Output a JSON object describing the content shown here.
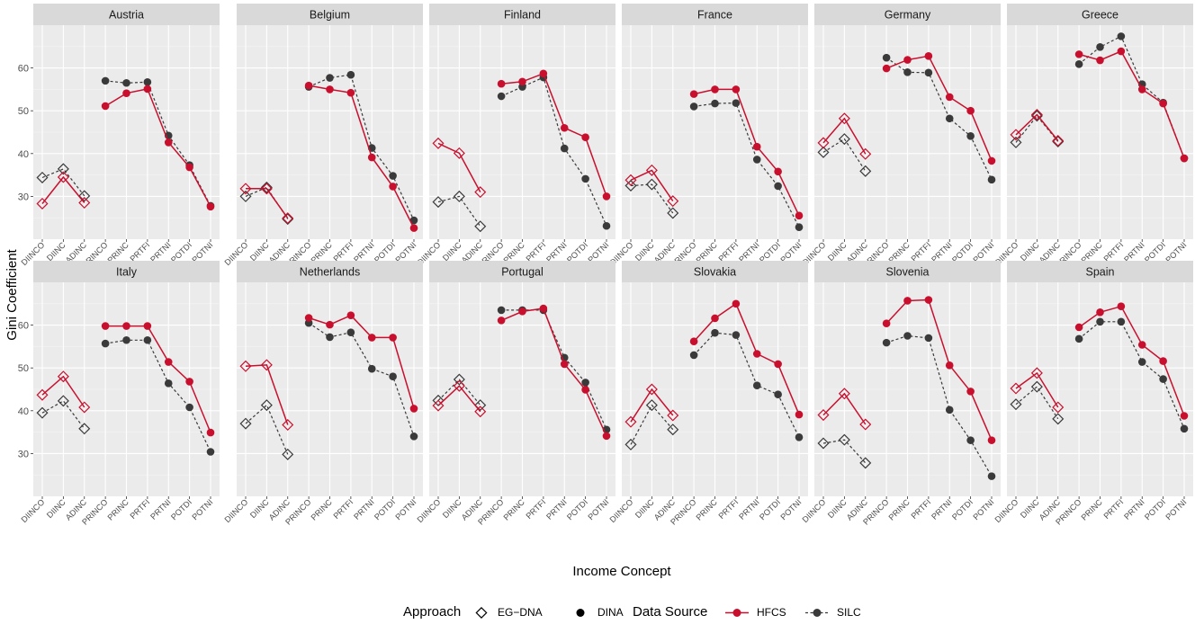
{
  "chart_data": {
    "type": "line",
    "xlabel": "Income Concept",
    "ylabel": "Gini Coefficient",
    "ylim": [
      20,
      70
    ],
    "yticks": [
      30,
      40,
      50,
      60
    ],
    "grid": true,
    "x": [
      "DIINCO",
      "DIINC",
      "ADINC",
      "PRINCO",
      "PRINC",
      "PRTFI",
      "PRTNI",
      "POTDI",
      "POTNI"
    ],
    "approach_groups": {
      "EG-DNA": [
        "DIINCO",
        "DIINC",
        "ADINC"
      ],
      "DINA": [
        "PRINCO",
        "PRINC",
        "PRTFI",
        "PRTNI",
        "POTDI",
        "POTNI"
      ]
    },
    "legend": {
      "approach_title": "Approach",
      "approach_items": [
        "EG−DNA",
        "DINA"
      ],
      "source_title": "Data Source",
      "source_items": [
        "HFCS",
        "SILC"
      ],
      "placement": "bottom"
    },
    "colors": {
      "HFCS": "#c8102e",
      "SILC": "#3a3a3a",
      "panel_bg": "#ebebeb",
      "strip_bg": "#d9d9d9"
    },
    "panels": [
      {
        "country": "Austria",
        "series": [
          {
            "name": "HFCS",
            "values": [
              28.3,
              34.5,
              28.5,
              51.1,
              54.1,
              55.1,
              42.6,
              36.8,
              27.6
            ]
          },
          {
            "name": "SILC",
            "values": [
              34.4,
              36.4,
              30.1,
              57.0,
              56.5,
              56.7,
              44.2,
              37.3,
              27.8
            ]
          }
        ]
      },
      {
        "country": "Belgium",
        "series": [
          {
            "name": "HFCS",
            "values": [
              31.8,
              31.8,
              24.9,
              55.9,
              55.0,
              54.2,
              39.1,
              32.3,
              22.6
            ]
          },
          {
            "name": "SILC",
            "values": [
              30.0,
              32.1,
              24.7,
              55.6,
              57.7,
              58.4,
              41.3,
              34.8,
              24.4
            ]
          }
        ]
      },
      {
        "country": "Finland",
        "series": [
          {
            "name": "HFCS",
            "values": [
              42.4,
              40.1,
              31.0,
              56.3,
              56.8,
              58.7,
              46.0,
              43.8,
              30.0
            ]
          },
          {
            "name": "SILC",
            "values": [
              28.7,
              30.0,
              23.0,
              53.4,
              55.6,
              57.8,
              41.2,
              34.1,
              23.1
            ]
          }
        ]
      },
      {
        "country": "France",
        "series": [
          {
            "name": "HFCS",
            "values": [
              33.8,
              36.1,
              28.9,
              53.9,
              55.0,
              55.0,
              41.6,
              35.8,
              25.5
            ]
          },
          {
            "name": "SILC",
            "values": [
              32.5,
              32.8,
              26.1,
              51.0,
              51.7,
              51.8,
              38.6,
              32.4,
              22.8
            ]
          }
        ]
      },
      {
        "country": "Germany",
        "series": [
          {
            "name": "HFCS",
            "values": [
              42.5,
              48.2,
              39.9,
              59.9,
              61.9,
              62.8,
              53.2,
              50.0,
              38.3
            ]
          },
          {
            "name": "SILC",
            "values": [
              40.3,
              43.4,
              35.9,
              62.4,
              59.0,
              58.9,
              48.2,
              44.1,
              33.9
            ]
          }
        ]
      },
      {
        "country": "Greece",
        "series": [
          {
            "name": "HFCS",
            "values": [
              44.4,
              49.1,
              43.0,
              63.2,
              61.8,
              63.9,
              55.0,
              51.7,
              38.9
            ]
          },
          {
            "name": "SILC",
            "values": [
              42.6,
              48.8,
              42.8,
              60.9,
              64.9,
              67.4,
              56.2,
              51.9,
              38.9
            ]
          }
        ]
      },
      {
        "country": "Italy",
        "series": [
          {
            "name": "HFCS",
            "values": [
              43.7,
              48.0,
              40.8,
              59.8,
              59.8,
              59.8,
              51.4,
              46.8,
              34.9
            ]
          },
          {
            "name": "SILC",
            "values": [
              39.5,
              42.3,
              35.8,
              55.7,
              56.5,
              56.5,
              46.4,
              40.8,
              30.4
            ]
          }
        ]
      },
      {
        "country": "Netherlands",
        "series": [
          {
            "name": "HFCS",
            "values": [
              50.4,
              50.7,
              36.7,
              61.7,
              60.1,
              62.3,
              57.1,
              57.1,
              40.5
            ]
          },
          {
            "name": "SILC",
            "values": [
              37.0,
              41.3,
              29.8,
              60.5,
              57.2,
              58.3,
              49.8,
              48.0,
              34.0
            ]
          }
        ]
      },
      {
        "country": "Portugal",
        "series": [
          {
            "name": "HFCS",
            "values": [
              41.2,
              45.8,
              39.8,
              61.1,
              63.2,
              63.9,
              50.9,
              44.9,
              34.1
            ]
          },
          {
            "name": "SILC",
            "values": [
              42.4,
              47.3,
              41.3,
              63.5,
              63.5,
              63.5,
              52.4,
              46.6,
              35.6
            ]
          }
        ]
      },
      {
        "country": "Slovakia",
        "series": [
          {
            "name": "HFCS",
            "values": [
              37.4,
              45.0,
              38.9,
              56.2,
              61.6,
              65.0,
              53.3,
              50.9,
              39.1
            ]
          },
          {
            "name": "SILC",
            "values": [
              32.1,
              41.3,
              35.6,
              53.0,
              58.2,
              57.7,
              45.9,
              43.8,
              33.8
            ]
          }
        ]
      },
      {
        "country": "Slovenia",
        "series": [
          {
            "name": "HFCS",
            "values": [
              39.0,
              44.0,
              36.8,
              60.4,
              65.7,
              65.9,
              50.6,
              44.5,
              33.1
            ]
          },
          {
            "name": "SILC",
            "values": [
              32.4,
              33.2,
              27.8,
              55.9,
              57.5,
              57.0,
              40.2,
              33.1,
              24.7
            ]
          }
        ]
      },
      {
        "country": "Spain",
        "series": [
          {
            "name": "HFCS",
            "values": [
              45.2,
              48.8,
              40.8,
              59.5,
              63.0,
              64.4,
              55.4,
              51.6,
              38.8
            ]
          },
          {
            "name": "SILC",
            "values": [
              41.5,
              45.6,
              38.1,
              56.8,
              60.8,
              60.8,
              51.4,
              47.4,
              35.8
            ]
          }
        ]
      }
    ]
  }
}
